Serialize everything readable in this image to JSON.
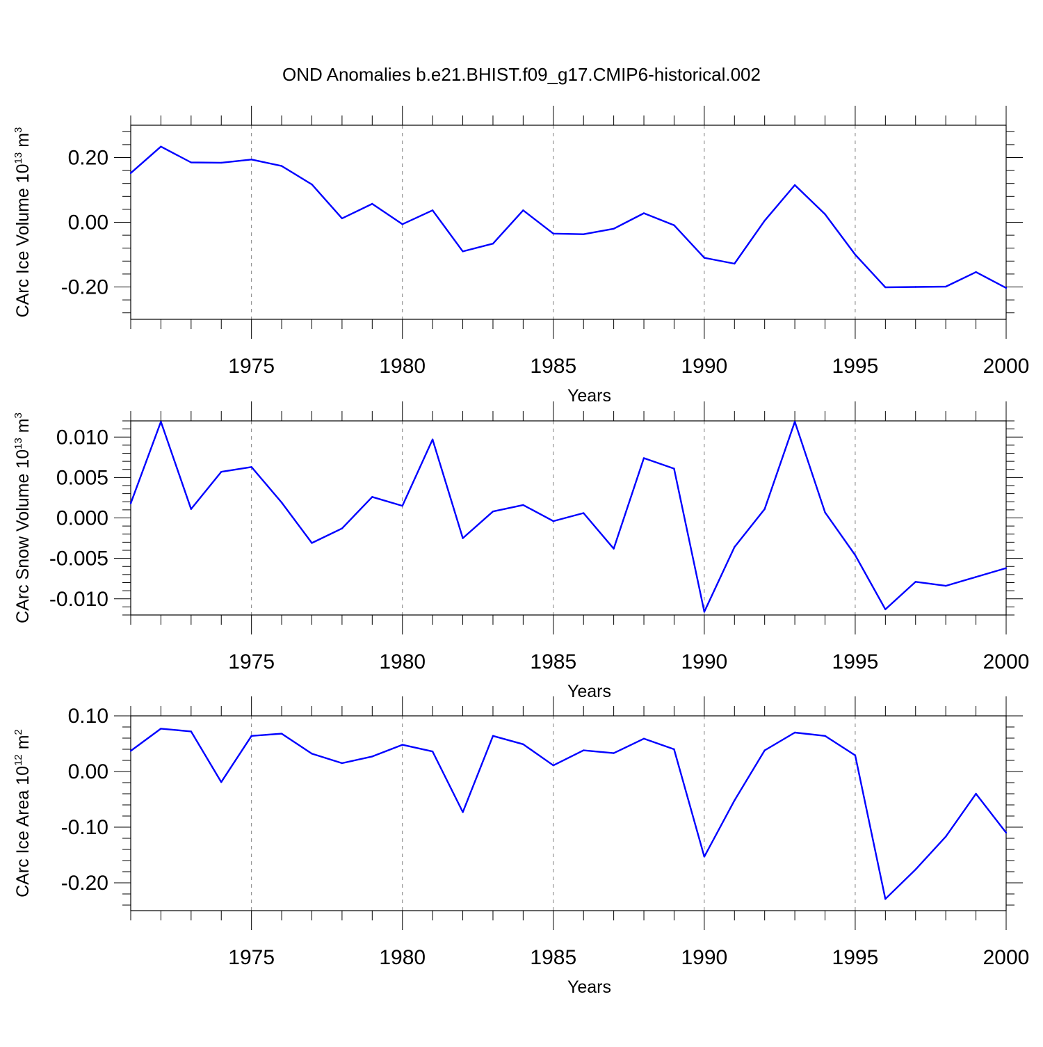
{
  "chart_data": {
    "title": "OND Anomalies b.e21.BHIST.f09_g17.CMIP6-historical.002",
    "colors": {
      "line": "#0000ff",
      "grid": "#808080",
      "frame": "#000000"
    },
    "panels": [
      {
        "type": "line",
        "ylabel_main": "CArc Ice Volume 10",
        "ylabel_exp": "13",
        "ylabel_unit": " m",
        "ylabel_unit_exp": "3",
        "xlabel": "Years",
        "xlim": [
          1971,
          2000
        ],
        "ylim": [
          -0.3,
          0.3
        ],
        "yticks": [
          0.2,
          0.0,
          -0.2
        ],
        "ytick_labels": [
          "0.20",
          "0.00",
          "-0.20"
        ],
        "xticks": [
          1975,
          1980,
          1985,
          1990,
          1995,
          2000
        ],
        "xtick_labels": [
          "1975",
          "1980",
          "1985",
          "1990",
          "1995",
          "2000"
        ],
        "x": [
          1971,
          1972,
          1973,
          1974,
          1975,
          1976,
          1977,
          1978,
          1979,
          1980,
          1981,
          1982,
          1983,
          1984,
          1985,
          1986,
          1987,
          1988,
          1989,
          1990,
          1991,
          1992,
          1993,
          1994,
          1995,
          1996,
          1997,
          1998,
          1999,
          2000
        ],
        "y": [
          0.152,
          0.234,
          0.185,
          0.184,
          0.194,
          0.174,
          0.117,
          0.012,
          0.057,
          -0.006,
          0.037,
          -0.09,
          -0.066,
          0.037,
          -0.035,
          -0.037,
          -0.02,
          0.028,
          -0.009,
          -0.11,
          -0.128,
          0.005,
          0.115,
          0.025,
          -0.1,
          -0.201,
          -0.2,
          -0.199,
          -0.154,
          -0.203
        ]
      },
      {
        "type": "line",
        "ylabel_main": "CArc Snow Volume 10",
        "ylabel_exp": "13",
        "ylabel_unit": " m",
        "ylabel_unit_exp": "3",
        "xlabel": "Years",
        "xlim": [
          1971,
          2000
        ],
        "ylim": [
          -0.012,
          0.012
        ],
        "yticks": [
          0.01,
          0.005,
          0.0,
          -0.005,
          -0.01
        ],
        "ytick_labels": [
          "0.010",
          "0.005",
          "0.000",
          "-0.005",
          "-0.010"
        ],
        "xticks": [
          1975,
          1980,
          1985,
          1990,
          1995,
          2000
        ],
        "xtick_labels": [
          "1975",
          "1980",
          "1985",
          "1990",
          "1995",
          "2000"
        ],
        "x": [
          1971,
          1972,
          1973,
          1974,
          1975,
          1976,
          1977,
          1978,
          1979,
          1980,
          1981,
          1982,
          1983,
          1984,
          1985,
          1986,
          1987,
          1988,
          1989,
          1990,
          1991,
          1992,
          1993,
          1994,
          1995,
          1996,
          1997,
          1998,
          1999,
          2000
        ],
        "y": [
          0.0018,
          0.0119,
          0.0011,
          0.0057,
          0.0063,
          0.0019,
          -0.0031,
          -0.0013,
          0.0026,
          0.0015,
          0.0097,
          -0.0025,
          0.0008,
          0.0016,
          -0.0004,
          0.0006,
          -0.0038,
          0.0074,
          0.0061,
          -0.0116,
          -0.0036,
          0.0011,
          0.0119,
          0.0007,
          -0.0046,
          -0.0113,
          -0.0079,
          -0.0084,
          -0.0073,
          -0.0062
        ]
      },
      {
        "type": "line",
        "ylabel_main": "CArc Ice Area 10",
        "ylabel_exp": "12",
        "ylabel_unit": " m",
        "ylabel_unit_exp": "2",
        "xlabel": "Years",
        "xlim": [
          1971,
          2000
        ],
        "ylim": [
          -0.25,
          0.1
        ],
        "yticks": [
          0.1,
          0.0,
          -0.1,
          -0.2
        ],
        "ytick_labels": [
          "0.10",
          "0.00",
          "-0.10",
          "-0.20"
        ],
        "xticks": [
          1975,
          1980,
          1985,
          1990,
          1995,
          2000
        ],
        "xtick_labels": [
          "1975",
          "1980",
          "1985",
          "1990",
          "1995",
          "2000"
        ],
        "x": [
          1971,
          1972,
          1973,
          1974,
          1975,
          1976,
          1977,
          1978,
          1979,
          1980,
          1981,
          1982,
          1983,
          1984,
          1985,
          1986,
          1987,
          1988,
          1989,
          1990,
          1991,
          1992,
          1993,
          1994,
          1995,
          1996,
          1997,
          1998,
          1999,
          2000
        ],
        "y": [
          0.037,
          0.077,
          0.072,
          -0.019,
          0.064,
          0.068,
          0.032,
          0.015,
          0.027,
          0.048,
          0.036,
          -0.073,
          0.064,
          0.049,
          0.011,
          0.038,
          0.033,
          0.059,
          0.04,
          -0.153,
          -0.052,
          0.038,
          0.07,
          0.064,
          0.029,
          -0.229,
          -0.176,
          -0.117,
          -0.04,
          -0.11
        ]
      }
    ]
  }
}
